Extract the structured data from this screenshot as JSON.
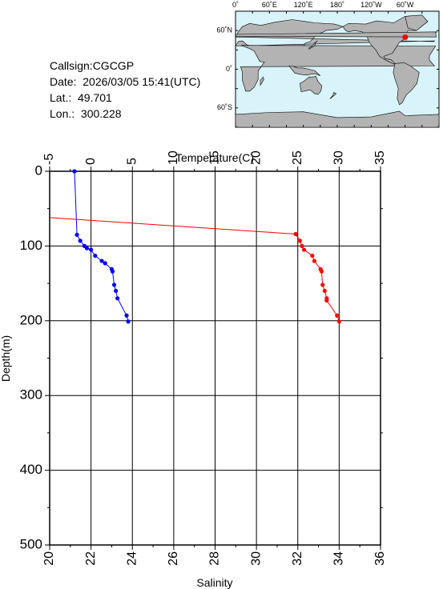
{
  "info": {
    "callsign": "Callsign:CGCGP",
    "date": "Date:  2026/03/05 15:41(UTC)",
    "lat": "Lat.:  49.701",
    "lon": "Lon.:  300.228"
  },
  "map": {
    "lon_labels": [
      "0˚",
      "60˚E",
      "120˚E",
      "180˚",
      "120˚W",
      "60˚W"
    ],
    "lat_labels": [
      "60˚N",
      "0˚",
      "60˚S"
    ],
    "ocean_color": "#d8f4fa",
    "land_color": "#b3b3b3",
    "marker_color": "#ff0000",
    "marker_lon": 300.228,
    "marker_lat": 49.701
  },
  "chart_data": {
    "type": "line",
    "xlabel_top": "Temperature(C)",
    "xlabel_bottom": "Salinity",
    "ylabel": "Depth(m)",
    "temperature_range": [
      -5,
      35
    ],
    "temperature_ticks": [
      "-5",
      "0",
      "5",
      "10",
      "15",
      "20",
      "25",
      "30",
      "35"
    ],
    "salinity_range": [
      20,
      36
    ],
    "salinity_ticks": [
      "20",
      "22",
      "24",
      "26",
      "28",
      "30",
      "32",
      "34",
      "36"
    ],
    "depth_range": [
      0,
      500
    ],
    "depth_ticks": [
      "0",
      "100",
      "200",
      "300",
      "400",
      "500"
    ],
    "grid": true,
    "series": [
      {
        "variable": "temperature",
        "color": "#0000ff",
        "points": [
          {
            "depth": 0,
            "value": -2.0
          },
          {
            "depth": 85,
            "value": -1.7
          },
          {
            "depth": 93,
            "value": -1.3
          },
          {
            "depth": 100,
            "value": -0.8
          },
          {
            "depth": 103,
            "value": -0.5
          },
          {
            "depth": 105,
            "value": 0.0
          },
          {
            "depth": 113,
            "value": 0.5
          },
          {
            "depth": 120,
            "value": 1.3
          },
          {
            "depth": 123,
            "value": 1.7
          },
          {
            "depth": 131,
            "value": 2.5
          },
          {
            "depth": 134,
            "value": 2.6
          },
          {
            "depth": 152,
            "value": 2.8
          },
          {
            "depth": 160,
            "value": 3.0
          },
          {
            "depth": 170,
            "value": 3.2
          },
          {
            "depth": 193,
            "value": 4.3
          },
          {
            "depth": 201,
            "value": 4.5
          }
        ]
      },
      {
        "variable": "salinity",
        "color": "#ff0000",
        "points": [
          {
            "depth": 62,
            "value": 20.0
          },
          {
            "depth": 84,
            "value": 31.9
          },
          {
            "depth": 93,
            "value": 32.1
          },
          {
            "depth": 100,
            "value": 32.2
          },
          {
            "depth": 105,
            "value": 32.3
          },
          {
            "depth": 113,
            "value": 32.7
          },
          {
            "depth": 120,
            "value": 32.8
          },
          {
            "depth": 131,
            "value": 33.1
          },
          {
            "depth": 134,
            "value": 33.15
          },
          {
            "depth": 152,
            "value": 33.2
          },
          {
            "depth": 160,
            "value": 33.3
          },
          {
            "depth": 170,
            "value": 33.4
          },
          {
            "depth": 173,
            "value": 33.4
          },
          {
            "depth": 193,
            "value": 33.9
          },
          {
            "depth": 201,
            "value": 34.0
          }
        ]
      }
    ]
  }
}
